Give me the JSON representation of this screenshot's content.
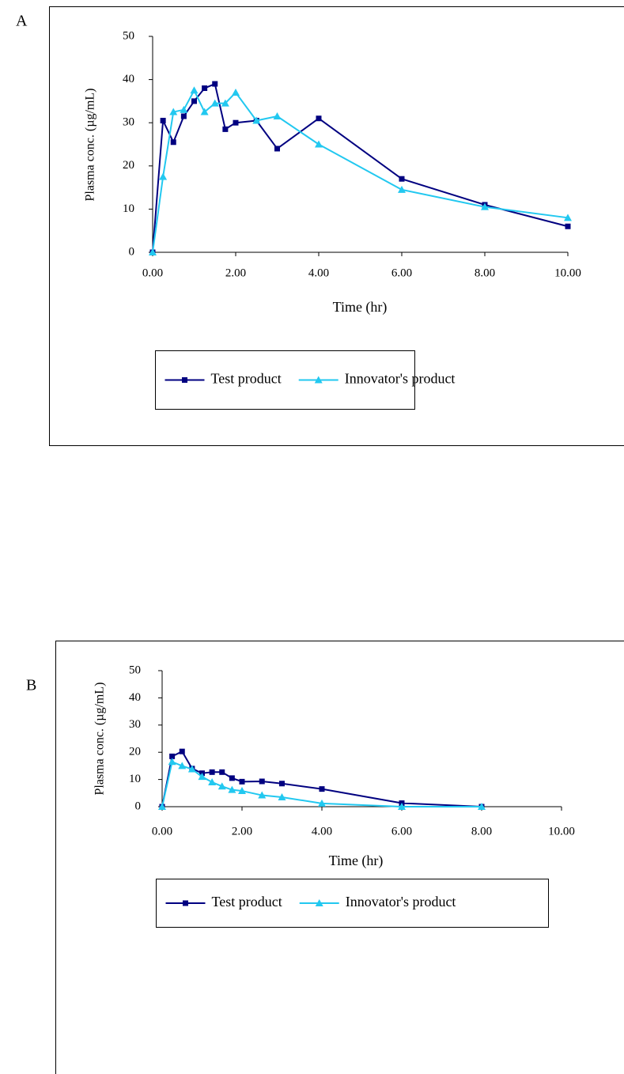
{
  "chart_data": [
    {
      "type": "line",
      "panel": "A",
      "y_label": "Plasma conc. (µg/mL)",
      "x_label": "Time (hr)",
      "x": [
        0,
        0.25,
        0.5,
        0.75,
        1,
        1.25,
        1.5,
        1.75,
        2,
        2.5,
        3,
        4,
        6,
        8,
        10
      ],
      "series": [
        {
          "name": "Test product",
          "color": "#000080",
          "marker": "square",
          "values": [
            0,
            30.5,
            25.5,
            31.5,
            35,
            38,
            39,
            28.5,
            30,
            30.5,
            24,
            31,
            17,
            11,
            6
          ]
        },
        {
          "name": "Innovator's product",
          "color": "#22c8f0",
          "marker": "triangle",
          "values": [
            0,
            17.5,
            32.5,
            33,
            37.5,
            32.5,
            34.5,
            34.5,
            37,
            30.5,
            31.5,
            25,
            14.5,
            10.5,
            8
          ]
        }
      ],
      "xlim": [
        0,
        10
      ],
      "xticks": [
        {
          "value": 0,
          "label": "0.00"
        },
        {
          "value": 2,
          "label": "2.00"
        },
        {
          "value": 4,
          "label": "4.00"
        },
        {
          "value": 6,
          "label": "6.00"
        },
        {
          "value": 8,
          "label": "8.00"
        },
        {
          "value": 10,
          "label": "10.00"
        }
      ],
      "ylim": [
        0,
        50
      ],
      "yticks": [
        0,
        10,
        20,
        30,
        40,
        50
      ],
      "grid": false,
      "legend": "bottom"
    },
    {
      "type": "line",
      "panel": "B",
      "y_label": "Plasma conc. (µg/mL)",
      "x_label": "Time (hr)",
      "x": [
        0,
        0.25,
        0.5,
        0.75,
        1,
        1.25,
        1.5,
        1.75,
        2,
        2.5,
        3,
        4,
        6,
        8
      ],
      "series": [
        {
          "name": "Test product",
          "color": "#000080",
          "marker": "square",
          "values": [
            0,
            18.5,
            20.3,
            14,
            12.3,
            12.7,
            12.7,
            10.5,
            9.2,
            9.3,
            8.5,
            6.5,
            1.3,
            0
          ]
        },
        {
          "name": "Innovator's product",
          "color": "#22c8f0",
          "marker": "triangle",
          "values": [
            0,
            16.5,
            15,
            13.8,
            11,
            9,
            7.5,
            6.2,
            5.8,
            4.2,
            3.5,
            1.2,
            0,
            0
          ]
        }
      ],
      "xlim": [
        0,
        10
      ],
      "xticks": [
        {
          "value": 0,
          "label": "0.00"
        },
        {
          "value": 2,
          "label": "2.00"
        },
        {
          "value": 4,
          "label": "4.00"
        },
        {
          "value": 6,
          "label": "6.00"
        },
        {
          "value": 8,
          "label": "8.00"
        },
        {
          "value": 10,
          "label": "10.00"
        }
      ],
      "ylim": [
        0,
        50
      ],
      "yticks": [
        0,
        10,
        20,
        30,
        40,
        50
      ],
      "grid": false,
      "legend": "bottom"
    }
  ]
}
